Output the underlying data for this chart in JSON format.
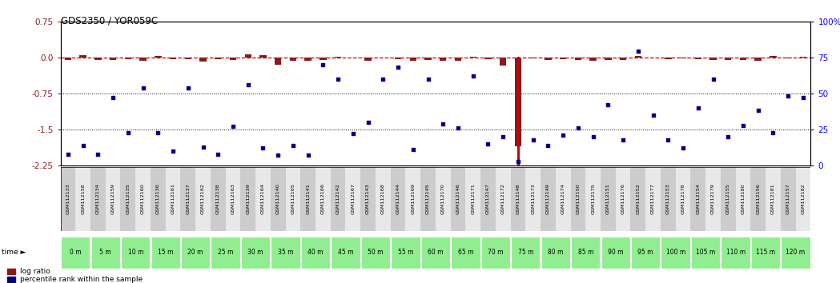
{
  "title": "GDS2350 / YOR059C",
  "gsm_labels": [
    "GSM112133",
    "GSM112158",
    "GSM112134",
    "GSM112159",
    "GSM112135",
    "GSM112160",
    "GSM112136",
    "GSM112161",
    "GSM112137",
    "GSM112162",
    "GSM112138",
    "GSM112163",
    "GSM112139",
    "GSM112164",
    "GSM112140",
    "GSM112165",
    "GSM112141",
    "GSM112166",
    "GSM112142",
    "GSM112167",
    "GSM112143",
    "GSM112168",
    "GSM112144",
    "GSM112169",
    "GSM112145",
    "GSM112170",
    "GSM112146",
    "GSM112171",
    "GSM112147",
    "GSM112172",
    "GSM112148",
    "GSM112173",
    "GSM112149",
    "GSM112174",
    "GSM112150",
    "GSM112175",
    "GSM112151",
    "GSM112176",
    "GSM112152",
    "GSM112177",
    "GSM112153",
    "GSM112178",
    "GSM112154",
    "GSM112179",
    "GSM112155",
    "GSM112180",
    "GSM112156",
    "GSM112181",
    "GSM112157",
    "GSM112182"
  ],
  "time_labels": [
    "0 m",
    "5 m",
    "10 m",
    "15 m",
    "20 m",
    "25 m",
    "30 m",
    "35 m",
    "40 m",
    "45 m",
    "50 m",
    "55 m",
    "60 m",
    "65 m",
    "70 m",
    "75 m",
    "80 m",
    "85 m",
    "90 m",
    "95 m",
    "100 m",
    "105 m",
    "110 m",
    "115 m",
    "120 m"
  ],
  "log_ratio": [
    -0.05,
    0.05,
    -0.05,
    -0.05,
    -0.04,
    -0.08,
    0.02,
    -0.04,
    -0.04,
    -0.09,
    -0.04,
    -0.05,
    0.06,
    0.04,
    -0.15,
    -0.08,
    -0.07,
    -0.06,
    0.01,
    -0.01,
    -0.07,
    0.0,
    -0.04,
    -0.07,
    -0.06,
    -0.08,
    -0.07,
    0.01,
    -0.04,
    -0.17,
    -1.85,
    -0.02,
    -0.05,
    -0.04,
    -0.06,
    -0.07,
    -0.05,
    -0.06,
    0.03,
    0.0,
    -0.04,
    -0.03,
    -0.04,
    -0.06,
    -0.06,
    -0.05,
    -0.07,
    0.02,
    -0.02,
    0.01
  ],
  "percentile_rank": [
    8,
    14,
    8,
    47,
    23,
    54,
    23,
    10,
    54,
    13,
    8,
    27,
    56,
    12,
    7,
    14,
    7,
    70,
    60,
    22,
    30,
    60,
    68,
    11,
    60,
    29,
    26,
    62,
    15,
    20,
    3,
    18,
    14,
    21,
    26,
    20,
    42,
    18,
    79,
    35,
    18,
    12,
    40,
    60,
    20,
    28,
    38,
    23,
    48,
    47
  ],
  "highlight_index": 30,
  "ylim_left": [
    -2.25,
    0.75
  ],
  "ylim_right": [
    0,
    100
  ],
  "yticks_left": [
    0.75,
    0.0,
    -0.75,
    -1.5,
    -2.25
  ],
  "yticks_right": [
    100,
    75,
    50,
    25,
    0
  ],
  "ytick_right_labels": [
    "100%",
    "75",
    "50",
    "25",
    "0"
  ],
  "hlines": [
    -0.75,
    -1.5
  ],
  "bar_color": "#8B1A1A",
  "scatter_color": "#00008B",
  "highlight_color": "#CC0000",
  "green_color": "#90EE90",
  "legend_log": "log ratio",
  "legend_pct": "percentile rank within the sample"
}
